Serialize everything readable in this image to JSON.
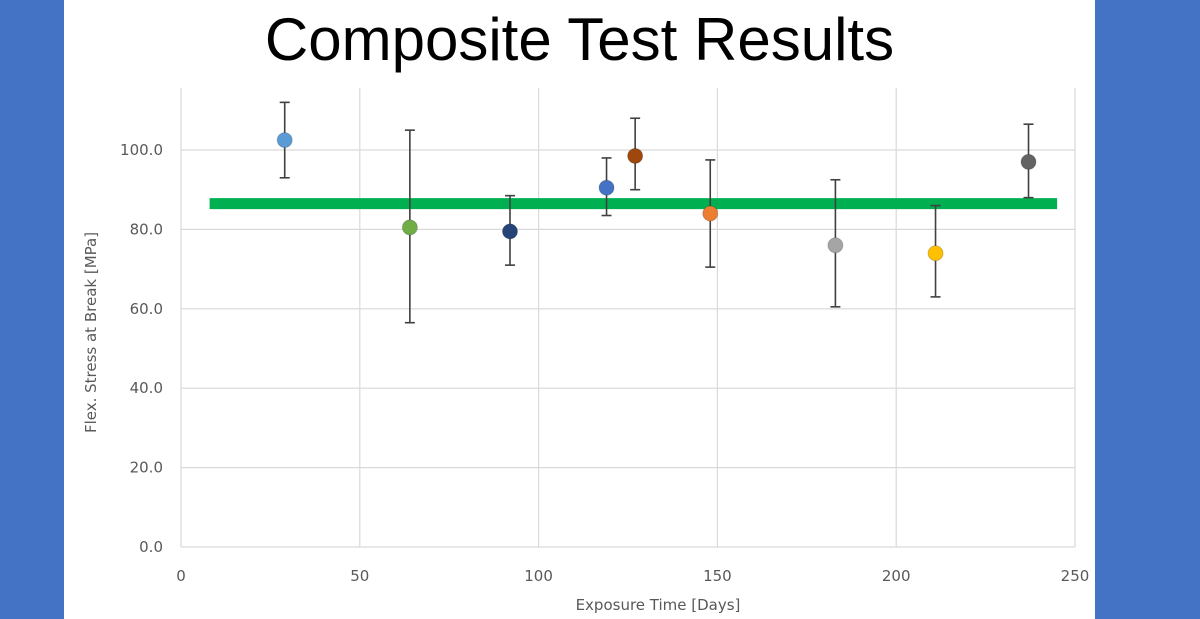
{
  "slide": {
    "title": "Composite Test Results"
  },
  "chart_data": {
    "type": "scatter",
    "title": "",
    "xlabel": "Exposure Time [Days]",
    "ylabel": "Flex. Stress at Break [MPa]",
    "xlim": [
      0,
      250
    ],
    "ylim": [
      0,
      115
    ],
    "xticks": [
      0,
      50,
      100,
      150,
      200,
      250
    ],
    "yticks": [
      0,
      20,
      40,
      60,
      80,
      100
    ],
    "xtick_labels": [
      "0",
      "50",
      "100",
      "150",
      "200",
      "250"
    ],
    "ytick_labels": [
      "0.0",
      "20.0",
      "40.0",
      "60.0",
      "80.0",
      "100.0"
    ],
    "grid": true,
    "points": [
      {
        "x": 29,
        "y": 102.5,
        "err_low": 93.0,
        "err_high": 112.0,
        "color": "#5b9bd5"
      },
      {
        "x": 64,
        "y": 80.5,
        "err_low": 56.5,
        "err_high": 105.0,
        "color": "#70ad47"
      },
      {
        "x": 92,
        "y": 79.5,
        "err_low": 71.0,
        "err_high": 88.5,
        "color": "#264478"
      },
      {
        "x": 119,
        "y": 90.5,
        "err_low": 83.5,
        "err_high": 98.0,
        "color": "#4472c4"
      },
      {
        "x": 127,
        "y": 98.5,
        "err_low": 90.0,
        "err_high": 108.0,
        "color": "#9e480e"
      },
      {
        "x": 148,
        "y": 84.0,
        "err_low": 70.5,
        "err_high": 97.5,
        "color": "#ed7d31"
      },
      {
        "x": 183,
        "y": 76.0,
        "err_low": 60.5,
        "err_high": 92.5,
        "color": "#a5a5a5"
      },
      {
        "x": 211,
        "y": 74.0,
        "err_low": 63.0,
        "err_high": 86.0,
        "color": "#ffc000"
      },
      {
        "x": 237,
        "y": 97.0,
        "err_low": 88.0,
        "err_high": 106.5,
        "color": "#636363"
      }
    ],
    "reference_line": {
      "y": 86.5,
      "x_start": 8,
      "x_end": 245,
      "color": "#00b050"
    }
  }
}
